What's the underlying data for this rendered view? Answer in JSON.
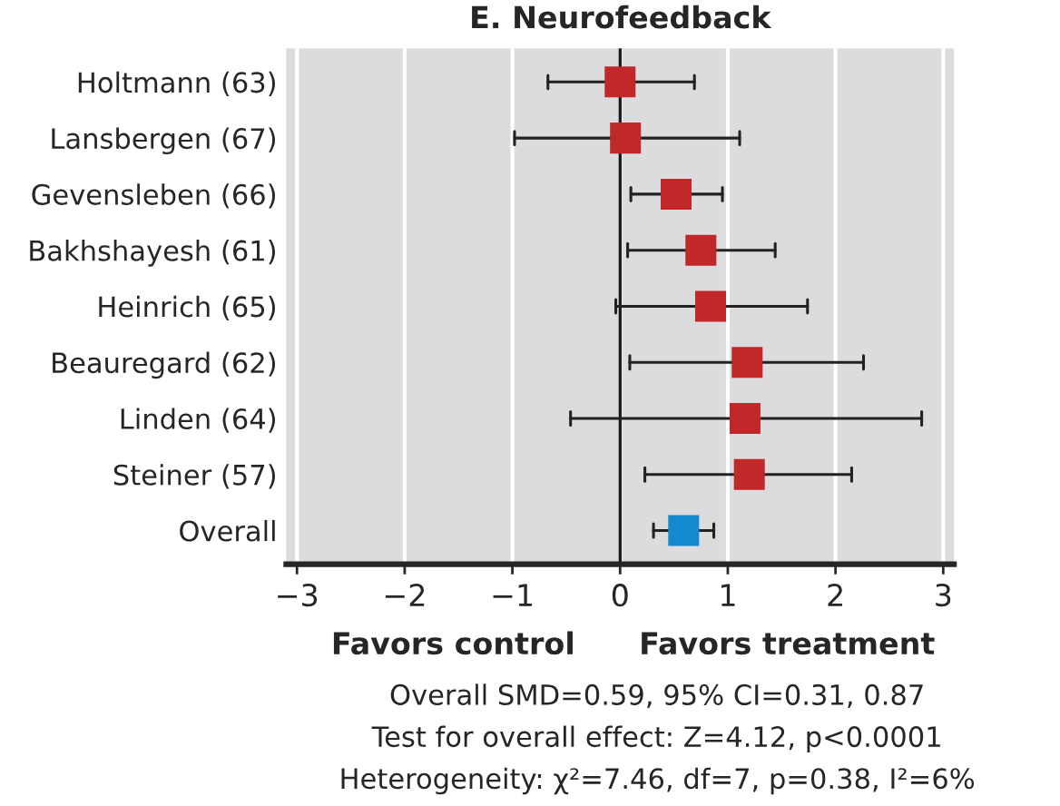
{
  "chart_data": {
    "type": "scatter",
    "orientation": "horizontal",
    "title": "E. Neurofeedback",
    "categories": [
      "Holtmann (63)",
      "Lansbergen (67)",
      "Gevensleben (66)",
      "Bakhshayesh (61)",
      "Heinrich (65)",
      "Beauregard (62)",
      "Linden (64)",
      "Steiner (57)",
      "Overall"
    ],
    "series": [
      {
        "color": "#c0282a",
        "values": [
          0.0,
          0.05,
          0.52,
          0.75,
          0.84,
          1.18,
          1.16,
          1.2,
          null
        ],
        "errors": [
          [
            -0.67,
            0.69
          ],
          [
            -0.98,
            1.11
          ],
          [
            0.1,
            0.95
          ],
          [
            0.07,
            1.44
          ],
          [
            -0.04,
            1.74
          ],
          [
            0.09,
            2.26
          ],
          [
            -0.46,
            2.8
          ],
          [
            0.23,
            2.15
          ],
          null
        ]
      },
      {
        "color": "#1589d0",
        "values": [
          null,
          null,
          null,
          null,
          null,
          null,
          null,
          null,
          0.59
        ],
        "errors": [
          null,
          null,
          null,
          null,
          null,
          null,
          null,
          null,
          [
            0.31,
            0.87
          ]
        ]
      }
    ],
    "xlim": [
      -3.1,
      3.1
    ],
    "xticks": [
      {
        "value": -3,
        "label": "−3"
      },
      {
        "value": -2,
        "label": "−2"
      },
      {
        "value": -1,
        "label": "−1"
      },
      0,
      1,
      2,
      3
    ],
    "ref_lines": [
      {
        "axis": "x",
        "value": 0,
        "color": "#1a1a1a"
      }
    ],
    "grid": "x",
    "marker": "square",
    "legend": false,
    "annotations": [
      "Favors control",
      "Favors treatment",
      "Overall SMD=0.59, 95% CI=0.31, 0.87",
      "Test for overall effect: Z=4.12, p<0.0001",
      "Heterogeneity: χ²=7.46, df=7, p=0.38, I²=6%"
    ]
  }
}
